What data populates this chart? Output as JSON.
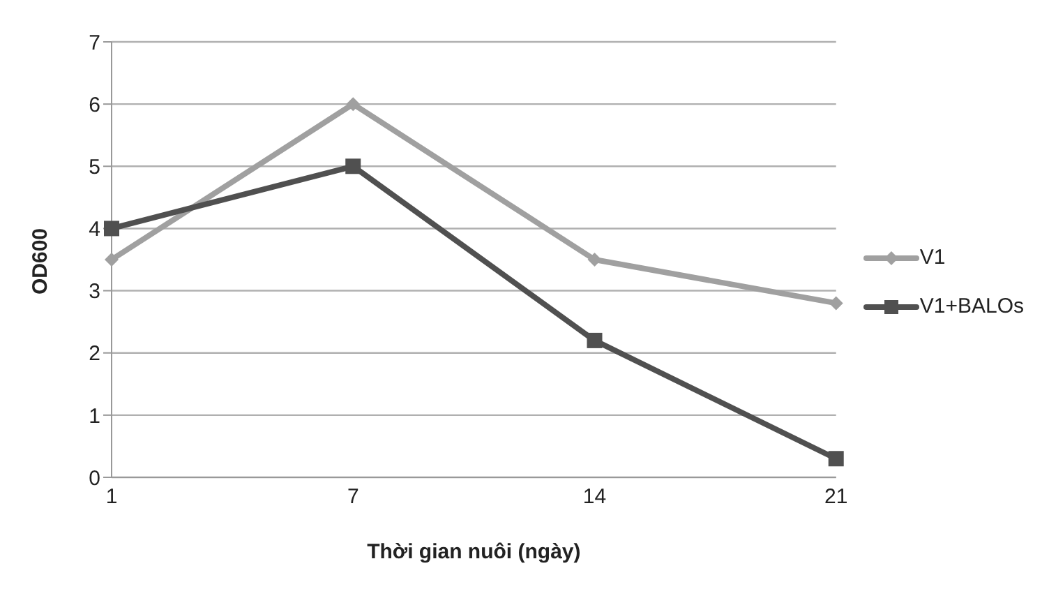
{
  "chart_data": {
    "type": "line",
    "xlabel": "Thời gian nuôi (ngày)",
    "ylabel": "OD600",
    "categories": [
      "1",
      "7",
      "14",
      "21"
    ],
    "series": [
      {
        "name": "V1",
        "color": "#a0a0a0",
        "marker": "diamond",
        "values": [
          3.5,
          6,
          3.5,
          2.8
        ]
      },
      {
        "name": "V1+BALOs",
        "color": "#505050",
        "marker": "square",
        "values": [
          4,
          5,
          2.2,
          0.3
        ]
      }
    ],
    "ylim": [
      0,
      7
    ],
    "yticks": [
      0,
      1,
      2,
      3,
      4,
      5,
      6,
      7
    ],
    "grid": "y",
    "legend": "right"
  }
}
